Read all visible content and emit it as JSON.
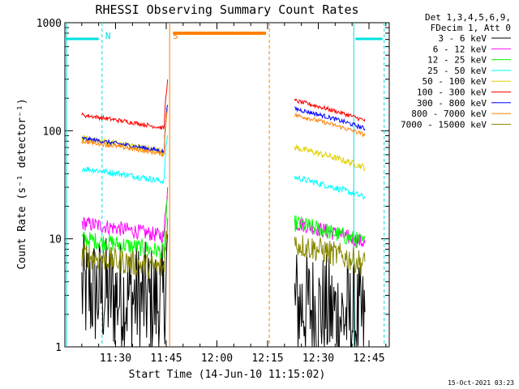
{
  "chart_data": {
    "type": "line",
    "title": "RHESSI Observing Summary Count Rates",
    "xlabel": "Start Time (14-Jun-10 11:15:02)",
    "ylabel": "Count Rate (s⁻¹ detector⁻¹)",
    "yscale": "log",
    "ylim": [
      1,
      1000
    ],
    "xlim_minutes": [
      0,
      96
    ],
    "x_ticks": [
      {
        "minute": 15,
        "label": "11:30"
      },
      {
        "minute": 30,
        "label": "11:45"
      },
      {
        "minute": 45,
        "label": "12:00"
      },
      {
        "minute": 60,
        "label": "12:15"
      },
      {
        "minute": 75,
        "label": "12:30"
      },
      {
        "minute": 90,
        "label": "12:45"
      }
    ],
    "y_ticks": [
      {
        "value": 1,
        "label": "1"
      },
      {
        "value": 10,
        "label": "10"
      },
      {
        "value": 100,
        "label": "100"
      },
      {
        "value": 1000,
        "label": "1000"
      }
    ],
    "legend_header": [
      "Det 1,3,4,5,6,9,",
      "FDecim 1, Att 0"
    ],
    "legend_position": "right",
    "series": [
      {
        "name": "3 - 6 keV",
        "color": "#000000",
        "level1": 3.3,
        "level2": 2.5,
        "noise": 0.55
      },
      {
        "name": "6 - 12 keV",
        "color": "#ff00ff",
        "level1": 14,
        "level2": 14,
        "noise": 0.07
      },
      {
        "name": "12 - 25 keV",
        "color": "#00ff00",
        "level1": 10,
        "level2": 14,
        "noise": 0.08
      },
      {
        "name": "25 - 50 keV",
        "color": "#00ffff",
        "level1": 45,
        "level2": 37,
        "noise": 0.03
      },
      {
        "name": "50 - 100 keV",
        "color": "#e0d000",
        "level1": 85,
        "level2": 70,
        "noise": 0.03
      },
      {
        "name": "100 - 300 keV",
        "color": "#ff0000",
        "level1": 140,
        "level2": 190,
        "noise": 0.02
      },
      {
        "name": "300 - 800 keV",
        "color": "#0000ff",
        "level1": 85,
        "level2": 160,
        "noise": 0.02
      },
      {
        "name": "800 - 7000 keV",
        "color": "#ff8000",
        "level1": 80,
        "level2": 140,
        "noise": 0.02
      },
      {
        "name": "7000 - 15000 keV",
        "color": "#888800",
        "level1": 7,
        "level2": 9,
        "noise": 0.12
      }
    ],
    "annotations": [
      {
        "label": "N",
        "minute": 11,
        "color": "#00e0e0"
      },
      {
        "label": "S",
        "minute": 31,
        "color": "#ff8000"
      }
    ],
    "footer_date": "15-Oct-2021 03:23"
  }
}
